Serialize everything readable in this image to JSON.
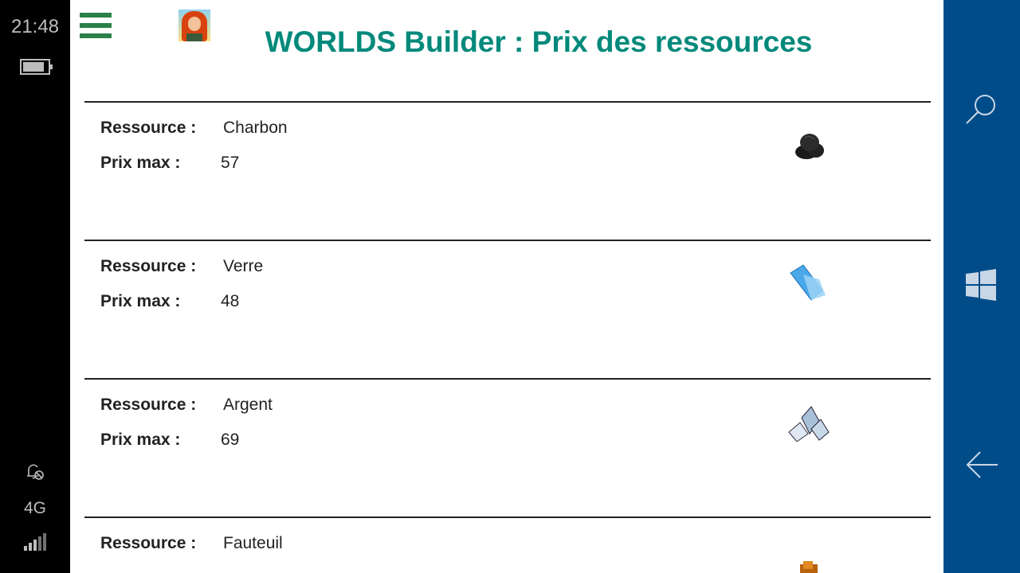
{
  "status_bar": {
    "time": "21:48",
    "network": "4G",
    "icons": [
      "battery-icon",
      "quiet-hours-icon",
      "signal-icon"
    ]
  },
  "nav_bar": {
    "icons": [
      "search-icon",
      "windows-icon",
      "back-icon"
    ],
    "color": "#004c89"
  },
  "header": {
    "title": "WORLDS Builder : Prix des ressources",
    "title_color": "#00897b",
    "menu_color": "#2a8048"
  },
  "labels": {
    "resource": "Ressource :",
    "max_price": "Prix max :"
  },
  "resources": [
    {
      "name": "Charbon",
      "max_price": "57",
      "icon": "coal-icon"
    },
    {
      "name": "Verre",
      "max_price": "48",
      "icon": "glass-icon"
    },
    {
      "name": "Argent",
      "max_price": "69",
      "icon": "silver-icon"
    },
    {
      "name": "Fauteuil",
      "max_price": "",
      "icon": "armchair-icon"
    }
  ]
}
